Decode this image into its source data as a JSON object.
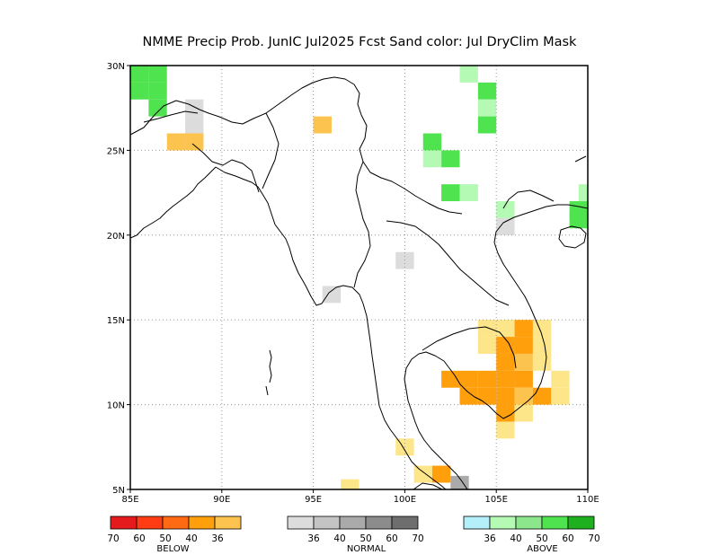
{
  "title": "NMME Precip Prob. JunIC  Jul2025 Fcst  Sand color: Jul DryClim Mask",
  "map": {
    "lon_range": [
      85,
      110
    ],
    "lat_range": [
      5,
      30
    ],
    "x_ticks": [
      {
        "value": 85,
        "label": "85E"
      },
      {
        "value": 90,
        "label": "90E"
      },
      {
        "value": 95,
        "label": "95E"
      },
      {
        "value": 100,
        "label": "100E"
      },
      {
        "value": 105,
        "label": "105E"
      },
      {
        "value": 110,
        "label": "110E"
      }
    ],
    "y_ticks": [
      {
        "value": 5,
        "label": "5N"
      },
      {
        "value": 10,
        "label": "10N"
      },
      {
        "value": 15,
        "label": "15N"
      },
      {
        "value": 20,
        "label": "20N"
      },
      {
        "value": 25,
        "label": "25N"
      },
      {
        "value": 30,
        "label": "30N"
      }
    ],
    "grid": "dotted",
    "colors": {
      "sand": "#fde68a",
      "below_36": "#fdc34f",
      "below_40": "#ff9f0c",
      "below_50": "#ff6a12",
      "below_60": "#ff3c14",
      "below_70": "#e41a1c",
      "normal_36": "#dcdcdc",
      "normal_40": "#c4c4c4",
      "normal_50": "#aaaaaa",
      "normal_60": "#8c8c8c",
      "normal_70": "#6e6e6e",
      "above_36": "#b4f0fa",
      "above_40": "#b4fab4",
      "above_50": "#8ce68c",
      "above_60": "#4fe34f",
      "above_70": "#1fb01f"
    },
    "cells": [
      {
        "lon": 85.5,
        "lat": 29.5,
        "cat": "above_60"
      },
      {
        "lon": 86.5,
        "lat": 29.5,
        "cat": "above_60"
      },
      {
        "lon": 85.5,
        "lat": 28.5,
        "cat": "above_60"
      },
      {
        "lon": 86.5,
        "lat": 28.5,
        "cat": "above_60"
      },
      {
        "lon": 86.5,
        "lat": 27.5,
        "cat": "above_60"
      },
      {
        "lon": 88.5,
        "lat": 27.5,
        "cat": "normal_36"
      },
      {
        "lon": 88.5,
        "lat": 26.5,
        "cat": "normal_36"
      },
      {
        "lon": 88.5,
        "lat": 25.5,
        "cat": "below_36"
      },
      {
        "lon": 87.5,
        "lat": 25.5,
        "cat": "below_36"
      },
      {
        "lon": 95.5,
        "lat": 26.5,
        "cat": "below_36"
      },
      {
        "lon": 103.5,
        "lat": 29.5,
        "cat": "above_40"
      },
      {
        "lon": 104.5,
        "lat": 28.5,
        "cat": "above_60"
      },
      {
        "lon": 104.5,
        "lat": 27.5,
        "cat": "above_40"
      },
      {
        "lon": 104.5,
        "lat": 26.5,
        "cat": "above_60"
      },
      {
        "lon": 101.5,
        "lat": 25.5,
        "cat": "above_60"
      },
      {
        "lon": 101.5,
        "lat": 24.5,
        "cat": "above_40"
      },
      {
        "lon": 102.5,
        "lat": 24.5,
        "cat": "above_60"
      },
      {
        "lon": 102.5,
        "lat": 22.5,
        "cat": "above_60"
      },
      {
        "lon": 103.5,
        "lat": 22.5,
        "cat": "above_40"
      },
      {
        "lon": 105.5,
        "lat": 21.5,
        "cat": "above_40"
      },
      {
        "lon": 105.5,
        "lat": 20.5,
        "cat": "normal_36"
      },
      {
        "lon": 109.5,
        "lat": 21.5,
        "cat": "above_60"
      },
      {
        "lon": 109.5,
        "lat": 20.9,
        "cat": "above_60"
      },
      {
        "lon": 110.0,
        "lat": 22.5,
        "cat": "above_40"
      },
      {
        "lon": 100.0,
        "lat": 18.5,
        "cat": "normal_36"
      },
      {
        "lon": 96.0,
        "lat": 16.5,
        "cat": "normal_36"
      },
      {
        "lon": 104.5,
        "lat": 14.5,
        "cat": "sand"
      },
      {
        "lon": 105.5,
        "lat": 14.5,
        "cat": "sand"
      },
      {
        "lon": 106.5,
        "lat": 14.5,
        "cat": "below_40"
      },
      {
        "lon": 107.5,
        "lat": 14.5,
        "cat": "sand"
      },
      {
        "lon": 104.5,
        "lat": 13.5,
        "cat": "sand"
      },
      {
        "lon": 105.5,
        "lat": 13.5,
        "cat": "below_40"
      },
      {
        "lon": 106.5,
        "lat": 13.5,
        "cat": "below_40"
      },
      {
        "lon": 107.5,
        "lat": 13.5,
        "cat": "sand"
      },
      {
        "lon": 105.5,
        "lat": 12.5,
        "cat": "below_40"
      },
      {
        "lon": 106.5,
        "lat": 12.5,
        "cat": "below_36"
      },
      {
        "lon": 107.5,
        "lat": 12.5,
        "cat": "sand"
      },
      {
        "lon": 102.5,
        "lat": 11.5,
        "cat": "below_40"
      },
      {
        "lon": 103.5,
        "lat": 11.5,
        "cat": "below_40"
      },
      {
        "lon": 104.5,
        "lat": 11.5,
        "cat": "below_40"
      },
      {
        "lon": 105.5,
        "lat": 11.5,
        "cat": "below_40"
      },
      {
        "lon": 106.5,
        "lat": 11.5,
        "cat": "below_40"
      },
      {
        "lon": 108.5,
        "lat": 11.5,
        "cat": "sand"
      },
      {
        "lon": 103.5,
        "lat": 10.5,
        "cat": "below_40"
      },
      {
        "lon": 104.5,
        "lat": 10.5,
        "cat": "below_40"
      },
      {
        "lon": 105.5,
        "lat": 10.5,
        "cat": "below_40"
      },
      {
        "lon": 106.5,
        "lat": 10.5,
        "cat": "below_36"
      },
      {
        "lon": 107.5,
        "lat": 10.5,
        "cat": "below_40"
      },
      {
        "lon": 108.5,
        "lat": 10.5,
        "cat": "sand"
      },
      {
        "lon": 105.5,
        "lat": 9.5,
        "cat": "below_40"
      },
      {
        "lon": 106.5,
        "lat": 9.5,
        "cat": "sand"
      },
      {
        "lon": 105.5,
        "lat": 8.5,
        "cat": "sand"
      },
      {
        "lon": 100.0,
        "lat": 7.5,
        "cat": "sand"
      },
      {
        "lon": 101.0,
        "lat": 5.9,
        "cat": "sand"
      },
      {
        "lon": 102.0,
        "lat": 5.9,
        "cat": "below_40"
      },
      {
        "lon": 103.0,
        "lat": 5.3,
        "cat": "normal_50"
      },
      {
        "lon": 97.0,
        "lat": 5.1,
        "cat": "sand"
      }
    ]
  },
  "legend": {
    "below": {
      "label": "BELOW",
      "ticks": [
        "70",
        "60",
        "50",
        "40",
        "36"
      ],
      "colors": [
        "#e41a1c",
        "#ff3c14",
        "#ff6a12",
        "#ff9f0c",
        "#fdc34f"
      ]
    },
    "normal": {
      "label": "NORMAL",
      "ticks": [
        "36",
        "40",
        "50",
        "60",
        "70"
      ],
      "colors": [
        "#dcdcdc",
        "#c4c4c4",
        "#aaaaaa",
        "#8c8c8c",
        "#6e6e6e"
      ]
    },
    "above": {
      "label": "ABOVE",
      "ticks": [
        "36",
        "40",
        "50",
        "60",
        "70"
      ],
      "colors": [
        "#b4f0fa",
        "#b4fab4",
        "#8ce68c",
        "#4fe34f",
        "#1fb01f"
      ]
    }
  }
}
